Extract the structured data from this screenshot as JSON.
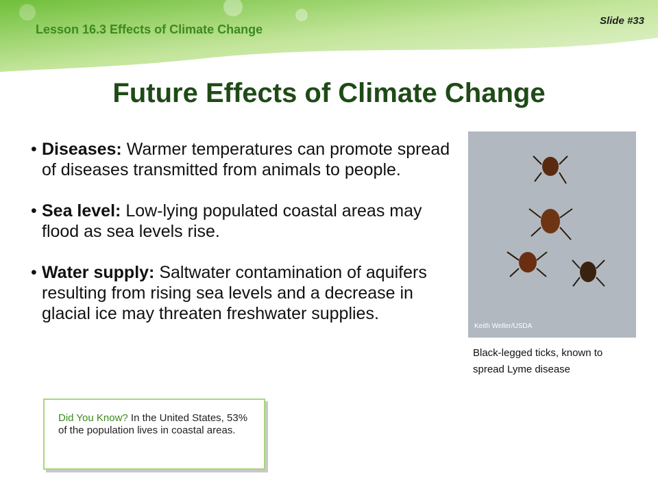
{
  "header": {
    "lesson": "Lesson 16.3 Effects of Climate Change",
    "slide_number": "Slide #33"
  },
  "title": "Future Effects of Climate Change",
  "bullets": [
    {
      "label": "Diseases:",
      "text": "Warmer temperatures can promote spread of diseases transmitted from animals to people."
    },
    {
      "label": "Sea level:",
      "text": "Low-lying populated coastal areas may flood as sea levels rise."
    },
    {
      "label": "Water supply:",
      "text": "Saltwater contamination of aquifers resulting from rising sea levels and a decrease in glacial ice may threaten freshwater supplies."
    }
  ],
  "image": {
    "credit": "Keith Weller/USDA",
    "caption": "Black-legged ticks, known to spread Lyme disease"
  },
  "callout": {
    "label": "Did You Know?",
    "text": "In the United States, 53% of the population lives in coastal areas."
  }
}
